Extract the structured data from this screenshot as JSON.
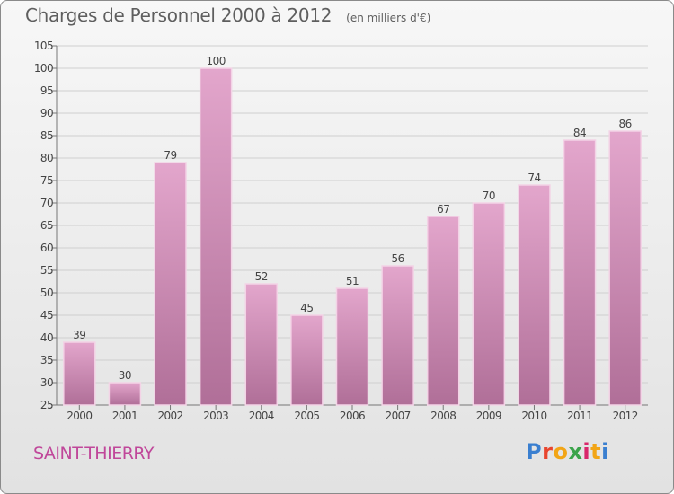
{
  "title": "Charges de Personnel 2000 à 2012",
  "subtitle": "(en milliers d'€)",
  "commune": "SAINT-THIERRY",
  "logo": {
    "text": "Proxiti",
    "colors": [
      "#3a7fd0",
      "#e8452e",
      "#f2a516",
      "#3aa34a",
      "#d9276b",
      "#f2a516",
      "#3a7fd0"
    ]
  },
  "colors": {
    "bar_top": "#e3a6cc",
    "bar_bottom": "#b06f98",
    "bar_edge": "#f3d3e6",
    "grid": "#cfcfcf",
    "axis_text": "#444444",
    "commune": "#c0479a"
  },
  "chart_data": {
    "type": "bar",
    "categories": [
      "2000",
      "2001",
      "2002",
      "2003",
      "2004",
      "2005",
      "2006",
      "2007",
      "2008",
      "2009",
      "2010",
      "2011",
      "2012"
    ],
    "values": [
      39,
      30,
      79,
      100,
      52,
      45,
      51,
      56,
      67,
      70,
      74,
      84,
      86
    ],
    "data_labels": [
      "39",
      "30",
      "79",
      "100",
      "52",
      "45",
      "51",
      "56",
      "67",
      "70",
      "74",
      "84",
      "86"
    ],
    "ylim": [
      25,
      105
    ],
    "yticks": [
      25,
      30,
      35,
      40,
      45,
      50,
      55,
      60,
      65,
      70,
      75,
      80,
      85,
      90,
      95,
      100,
      105
    ],
    "grid": true,
    "xlabel": "",
    "ylabel": ""
  }
}
